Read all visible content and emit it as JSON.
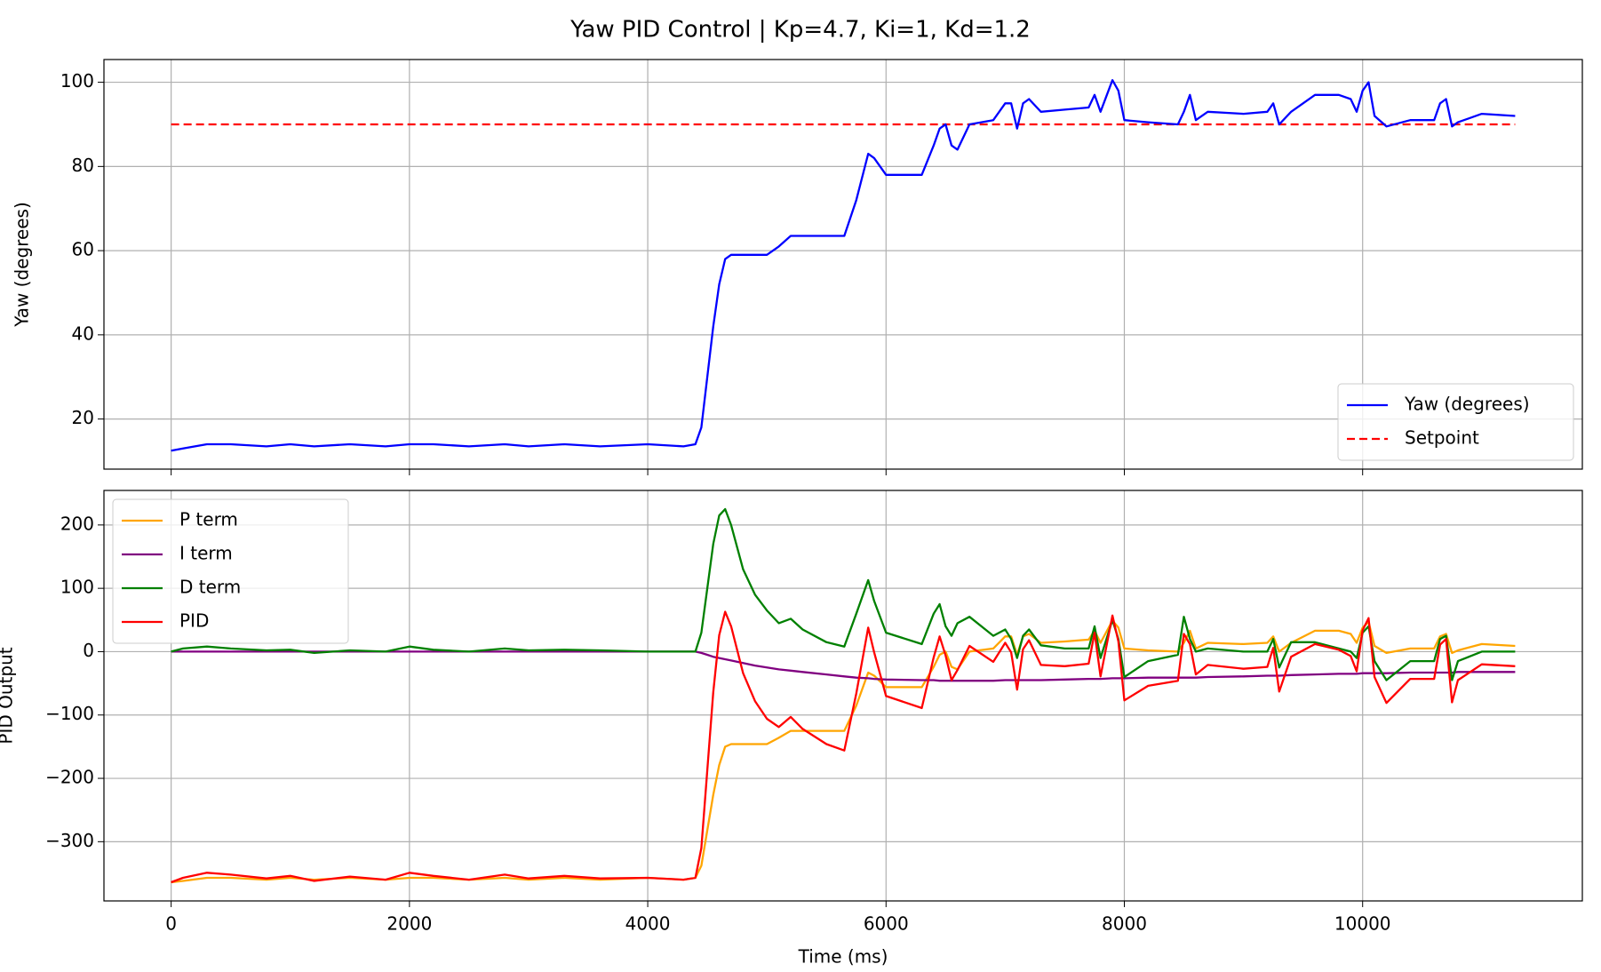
{
  "chart_data": [
    {
      "type": "line",
      "title": "Yaw PID Control | Kp=4.7, Ki=1, Kd=1.2",
      "ylabel": "Yaw (degrees)",
      "x": [
        0,
        100,
        300,
        500,
        800,
        1000,
        1200,
        1500,
        1800,
        2000,
        2200,
        2500,
        2800,
        3000,
        3300,
        3600,
        4000,
        4300,
        4400,
        4450,
        4500,
        4550,
        4600,
        4650,
        4700,
        4800,
        4900,
        5000,
        5100,
        5200,
        5300,
        5500,
        5650,
        5750,
        5850,
        5900,
        6000,
        6300,
        6400,
        6450,
        6500,
        6550,
        6600,
        6700,
        6900,
        7000,
        7050,
        7100,
        7150,
        7200,
        7300,
        7500,
        7700,
        7750,
        7800,
        7900,
        7950,
        8000,
        8200,
        8450,
        8500,
        8550,
        8600,
        8700,
        9000,
        9200,
        9250,
        9300,
        9400,
        9600,
        9800,
        9900,
        9950,
        10000,
        10050,
        10100,
        10200,
        10400,
        10600,
        10650,
        10700,
        10750,
        10800,
        11000,
        11280
      ],
      "series": [
        {
          "name": "Yaw (degrees)",
          "color": "#0000ff",
          "values": [
            12.5,
            13,
            14,
            14,
            13.5,
            14,
            13.5,
            14,
            13.5,
            14,
            14,
            13.5,
            14,
            13.5,
            14,
            13.5,
            14,
            13.5,
            14,
            18,
            30,
            42,
            52,
            58,
            59,
            59,
            59,
            59,
            61,
            63.5,
            63.5,
            63.5,
            63.5,
            72,
            83,
            82,
            78,
            78,
            85,
            89,
            90,
            85,
            84,
            90,
            91,
            95,
            95,
            89,
            95,
            96,
            93,
            93.5,
            94,
            97,
            93,
            100.5,
            98,
            91,
            90.5,
            90,
            93,
            97,
            91,
            93,
            92.5,
            93,
            95,
            90,
            93,
            97,
            97,
            96,
            93,
            98,
            100,
            92,
            89.5,
            91,
            91,
            95,
            96,
            89.5,
            90.5,
            92.5,
            92
          ]
        }
      ],
      "hlines": [
        {
          "name": "Setpoint",
          "color": "#ff0000",
          "value": 90,
          "style": "dashed"
        }
      ],
      "xlim": [
        -564,
        11844
      ],
      "ylim": [
        8.1,
        105.4
      ],
      "xticks": [
        0,
        2000,
        4000,
        6000,
        8000,
        10000
      ],
      "yticks": [
        20,
        40,
        60,
        80,
        100
      ],
      "show_xtick_labels": false,
      "grid": true,
      "legend": "lower right"
    },
    {
      "type": "line",
      "ylabel": "PID Output",
      "xlabel": "Time (ms)",
      "x": [
        0,
        100,
        300,
        500,
        800,
        1000,
        1200,
        1500,
        1800,
        2000,
        2200,
        2500,
        2800,
        3000,
        3300,
        3600,
        4000,
        4300,
        4400,
        4450,
        4500,
        4550,
        4600,
        4650,
        4700,
        4800,
        4900,
        5000,
        5100,
        5200,
        5300,
        5500,
        5650,
        5750,
        5850,
        5900,
        6000,
        6300,
        6400,
        6450,
        6500,
        6550,
        6600,
        6700,
        6900,
        7000,
        7050,
        7100,
        7150,
        7200,
        7300,
        7500,
        7700,
        7750,
        7800,
        7900,
        7950,
        8000,
        8200,
        8450,
        8500,
        8550,
        8600,
        8700,
        9000,
        9200,
        9250,
        9300,
        9400,
        9600,
        9800,
        9900,
        9950,
        10000,
        10050,
        10100,
        10200,
        10400,
        10600,
        10650,
        10700,
        10750,
        10800,
        11000,
        11280
      ],
      "series": [
        {
          "name": "P term",
          "color": "#ffa500",
          "values": [
            -364,
            -362,
            -357,
            -357,
            -360,
            -357,
            -360,
            -357,
            -360,
            -357,
            -357,
            -360,
            -357,
            -360,
            -357,
            -360,
            -357,
            -360,
            -357,
            -338,
            -282,
            -226,
            -179,
            -150,
            -146,
            -146,
            -146,
            -146,
            -136,
            -125,
            -125,
            -125,
            -125,
            -85,
            -33,
            -38,
            -56,
            -56,
            -24,
            -5,
            0,
            -24,
            -28,
            0,
            5,
            24,
            24,
            -5,
            24,
            28,
            14,
            16,
            19,
            33,
            14,
            49,
            38,
            5,
            2,
            0,
            14,
            33,
            5,
            14,
            12,
            14,
            24,
            0,
            14,
            33,
            33,
            28,
            14,
            38,
            47,
            9,
            -2,
            5,
            5,
            24,
            28,
            -2,
            2,
            12,
            9
          ]
        },
        {
          "name": "I term",
          "color": "#800080",
          "values": [
            0,
            0,
            0,
            0,
            0,
            0,
            0,
            0,
            0,
            0,
            0,
            0,
            0,
            0,
            0,
            0,
            0,
            0,
            0,
            -2,
            -5,
            -8,
            -10,
            -12,
            -14,
            -18,
            -22,
            -25,
            -28,
            -30,
            -32,
            -36,
            -39,
            -41,
            -42,
            -43,
            -44,
            -45,
            -45,
            -46,
            -46,
            -46,
            -46,
            -46,
            -46,
            -45,
            -45,
            -45,
            -45,
            -45,
            -45,
            -44,
            -43,
            -43,
            -43,
            -42,
            -42,
            -42,
            -41,
            -41,
            -41,
            -41,
            -41,
            -40,
            -39,
            -38,
            -38,
            -38,
            -37,
            -36,
            -35,
            -35,
            -35,
            -34,
            -34,
            -34,
            -34,
            -33,
            -33,
            -33,
            -33,
            -33,
            -32,
            -32,
            -32
          ]
        },
        {
          "name": "D term",
          "color": "#008000",
          "values": [
            0,
            5,
            8,
            5,
            2,
            3,
            -2,
            2,
            0,
            8,
            3,
            0,
            5,
            2,
            3,
            2,
            0,
            0,
            0,
            30,
            100,
            170,
            215,
            225,
            200,
            130,
            90,
            65,
            45,
            52,
            35,
            15,
            8,
            60,
            113,
            80,
            30,
            12,
            60,
            75,
            40,
            25,
            45,
            55,
            25,
            35,
            20,
            -10,
            25,
            35,
            10,
            5,
            5,
            40,
            -10,
            50,
            20,
            -40,
            -15,
            -5,
            55,
            20,
            0,
            5,
            0,
            0,
            20,
            -25,
            15,
            15,
            5,
            0,
            -10,
            30,
            40,
            -15,
            -45,
            -15,
            -15,
            20,
            25,
            -45,
            -15,
            0,
            0
          ]
        },
        {
          "name": "PID",
          "color": "#ff0000",
          "values": [
            -364,
            -357,
            -349,
            -352,
            -358,
            -354,
            -362,
            -355,
            -360,
            -349,
            -354,
            -360,
            -352,
            -358,
            -354,
            -358,
            -357,
            -360,
            -357,
            -310,
            -187,
            -64,
            26,
            63,
            40,
            -34,
            -78,
            -106,
            -119,
            -103,
            -122,
            -146,
            -156,
            -66,
            38,
            -1,
            -70,
            -89,
            -9,
            24,
            -6,
            -45,
            -29,
            9,
            -16,
            14,
            -1,
            -60,
            4,
            18,
            -21,
            -23,
            -19,
            30,
            -39,
            57,
            16,
            -77,
            -54,
            -46,
            28,
            12,
            -36,
            -21,
            -27,
            -24,
            6,
            -63,
            -8,
            12,
            3,
            -7,
            -31,
            34,
            53,
            -40,
            -81,
            -43,
            -43,
            11,
            20,
            -80,
            -45,
            -20,
            -23
          ]
        }
      ],
      "xlim": [
        -564,
        11844
      ],
      "ylim": [
        -393.5,
        254.5
      ],
      "xticks": [
        0,
        2000,
        4000,
        6000,
        8000,
        10000
      ],
      "yticks": [
        {
          "value": -300,
          "label": "−300"
        },
        {
          "value": -200,
          "label": "−200"
        },
        {
          "value": -100,
          "label": "−100"
        },
        0,
        100,
        200
      ],
      "show_xtick_labels": true,
      "grid": true,
      "legend": "upper left"
    }
  ]
}
